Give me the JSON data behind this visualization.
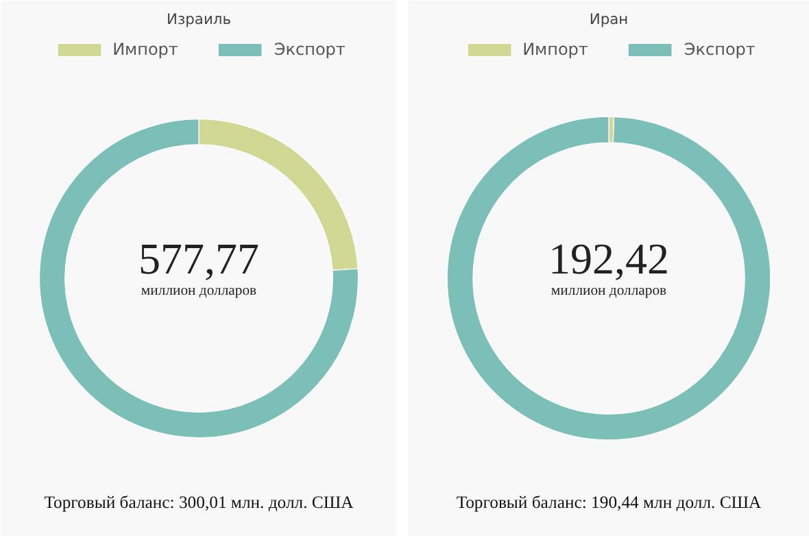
{
  "chart_data": [
    {
      "type": "donut",
      "title": "Израиль",
      "categories": [
        "Импорт",
        "Экспорт"
      ],
      "values": [
        24.04,
        75.96
      ],
      "colors": [
        "#d1d893",
        "#7bbfb8"
      ],
      "legend": "top",
      "annotations": [
        "577,77",
        "миллион долларов",
        "Торговый баланс: 300,01 млн. долл. США"
      ]
    },
    {
      "type": "donut",
      "title": "Иран",
      "categories": [
        "Импорт",
        "Экспорт"
      ],
      "values": [
        0.51,
        99.49
      ],
      "colors": [
        "#d1d893",
        "#7bbfb8"
      ],
      "legend": "top",
      "annotations": [
        "192,42",
        "миллион долларов",
        "Торговый баланс: 190,44 млн долл. США"
      ]
    }
  ]
}
